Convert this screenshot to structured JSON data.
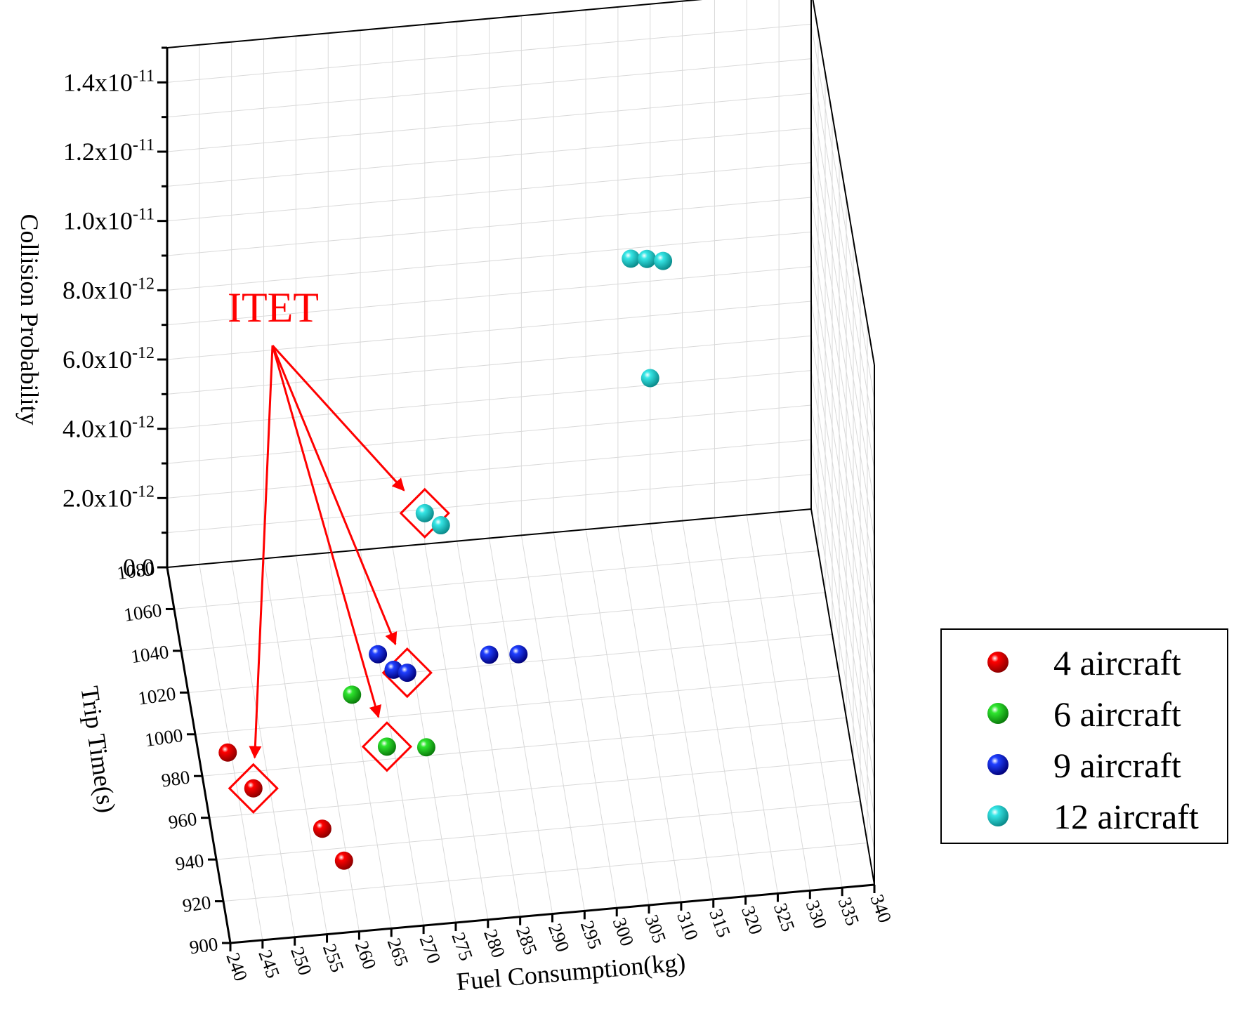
{
  "chart_data": {
    "type": "scatter3d",
    "title": "",
    "xlabel": "Fuel Consumption(kg)",
    "ylabel": "Trip Time(s)",
    "zlabel": "Collision Probability",
    "xlim": [
      240,
      340
    ],
    "ylim": [
      900,
      1080
    ],
    "zlim": [
      0,
      1.5e-11
    ],
    "xticks": [
      "240",
      "245",
      "250",
      "255",
      "260",
      "265",
      "270",
      "275",
      "280",
      "285",
      "290",
      "295",
      "300",
      "305",
      "310",
      "315",
      "320",
      "325",
      "330",
      "335",
      "340"
    ],
    "yticks": [
      "900",
      "920",
      "940",
      "960",
      "980",
      "1000",
      "1020",
      "1040",
      "1060",
      "1080"
    ],
    "zticks": [
      {
        "base": "0.0",
        "exp": ""
      },
      {
        "base": "2.0x10",
        "exp": "-12"
      },
      {
        "base": "4.0x10",
        "exp": "-12"
      },
      {
        "base": "6.0x10",
        "exp": "-12"
      },
      {
        "base": "8.0x10",
        "exp": "-12"
      },
      {
        "base": "1.0x10",
        "exp": "-11"
      },
      {
        "base": "1.2x10",
        "exp": "-11"
      },
      {
        "base": "1.4x10",
        "exp": "-11"
      }
    ],
    "series": [
      {
        "name": "4 aircraft",
        "color": "#ff0000",
        "shade": "#8b0000",
        "points": [
          [
            244.5,
            990,
            0
          ],
          [
            247.5,
            972,
            0
          ],
          [
            257,
            950,
            0
          ],
          [
            259.5,
            934,
            0
          ]
        ]
      },
      {
        "name": "6 aircraft",
        "color": "#2ee62e",
        "shade": "#0a7a0a",
        "points": [
          [
            265,
            1012,
            0
          ],
          [
            269,
            986,
            0
          ],
          [
            275,
            984,
            0
          ]
        ]
      },
      {
        "name": "9 aircraft",
        "color": "#1f3fff",
        "shade": "#00007a",
        "points": [
          [
            270,
            1030,
            0
          ],
          [
            272,
            1022,
            0
          ],
          [
            274,
            1020,
            0
          ],
          [
            287,
            1025,
            0
          ],
          [
            291.5,
            1024,
            0
          ]
        ]
      },
      {
        "name": "12 aircraft",
        "color": "#36e6e6",
        "shade": "#0a8a8a",
        "points": [
          [
            280,
            1080,
            8.9e-13
          ],
          [
            282.5,
            1080,
            5e-13
          ],
          [
            312,
            1080,
            7.7e-12
          ],
          [
            314.5,
            1080,
            7.65e-12
          ],
          [
            317,
            1080,
            7.55e-12
          ],
          [
            315,
            1080,
            4.2e-12
          ]
        ]
      }
    ],
    "annotation": {
      "text": "ITET",
      "color": "#ff0000",
      "targets": [
        [
          247.5,
          972,
          0
        ],
        [
          269,
          986,
          0
        ],
        [
          274,
          1020,
          0
        ],
        [
          280,
          1080,
          8.9e-13
        ]
      ]
    },
    "legend": {
      "position": "right",
      "entries": [
        "4 aircraft",
        "6 aircraft",
        "9 aircraft",
        "12 aircraft"
      ]
    }
  }
}
